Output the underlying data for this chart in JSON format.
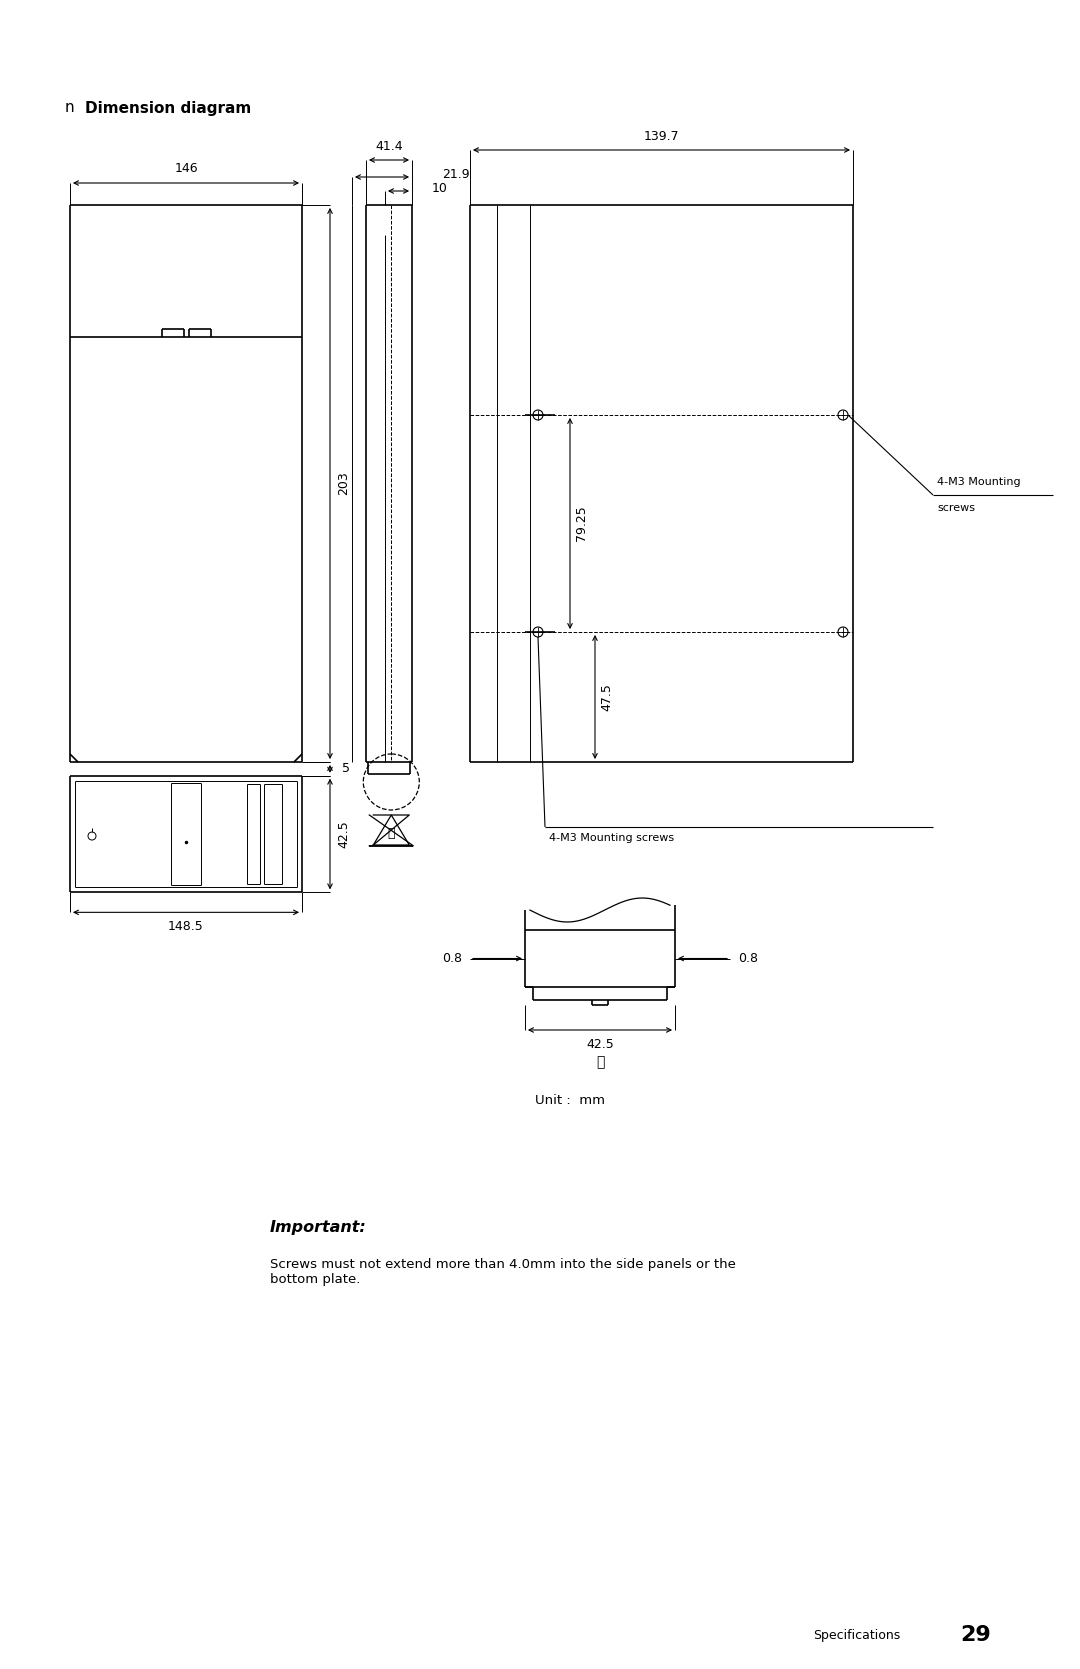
{
  "title": "Dimension diagram",
  "title_prefix": "n",
  "bg_color": "#ffffff",
  "line_color": "#000000",
  "important_title": "Important:",
  "important_text": "Screws must not extend more than 4.0mm into the side panels or the\nbottom plate.",
  "unit_text": "Unit :  mm",
  "page_text": "Specifications",
  "page_num": "29"
}
